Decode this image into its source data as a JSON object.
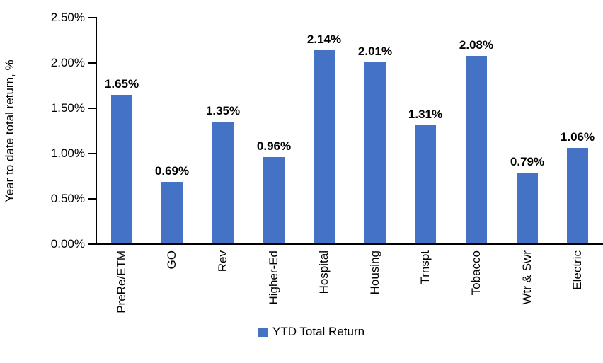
{
  "chart": {
    "y_axis_title": "Year to date total return, %",
    "legend_label": "YTD Total Return"
  },
  "chart_data": {
    "type": "bar",
    "title": "",
    "categories": [
      "PreRe/ETM",
      "GO",
      "Rev",
      "Higher-Ed",
      "Hospital",
      "Housing",
      "Trnspt",
      "Tobacco",
      "Wtr & Swr",
      "Electric"
    ],
    "series": [
      {
        "name": "YTD Total Return",
        "values": [
          1.65,
          0.69,
          1.35,
          0.96,
          2.14,
          2.01,
          1.31,
          2.08,
          0.79,
          1.06
        ],
        "data_labels": [
          "1.65%",
          "0.69%",
          "1.35%",
          "0.96%",
          "2.14%",
          "2.01%",
          "1.31%",
          "2.08%",
          "0.79%",
          "1.06%"
        ],
        "color": "#4472C4"
      }
    ],
    "xlabel": "",
    "ylabel": "Year to date total return, %",
    "ylim": [
      0,
      2.5
    ],
    "ytick_step": 0.5,
    "ytick_labels": [
      "0.00%",
      "0.50%",
      "1.00%",
      "1.50%",
      "2.00%",
      "2.50%"
    ],
    "grid": false,
    "legend_position": "bottom",
    "category_label_rotation_deg": 90,
    "axis_color": "#000000",
    "text_color": "#000000"
  }
}
